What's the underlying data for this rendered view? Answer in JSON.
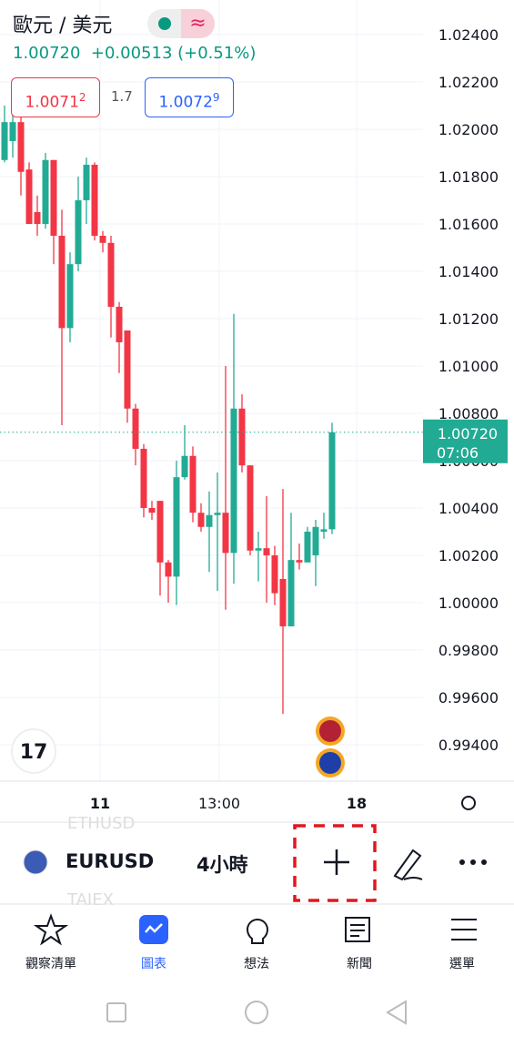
{
  "header": {
    "symbol_name": "歐元 / 美元",
    "price": "1.00720",
    "change": "+0.00513 (+0.51%)",
    "bid": {
      "main": "1.0071",
      "pip": "2"
    },
    "spread": "1.7",
    "ask": {
      "main": "1.0072",
      "pip": "9"
    }
  },
  "chart_data": {
    "type": "candlestick",
    "up_color": "#22ab94",
    "down_color": "#f23645",
    "open": [
      1.0187,
      1.0195,
      1.0203,
      1.0183,
      1.0165,
      1.016,
      1.0187,
      1.0155,
      1.0116,
      1.0143,
      1.017,
      1.0185,
      1.0155,
      1.0152,
      1.0125,
      1.0115,
      1.0082,
      1.0065,
      1.004,
      1.0043,
      1.0017,
      1.0011,
      1.0053,
      1.0062,
      1.0038,
      1.0032,
      1.0037,
      1.0038,
      1.0021,
      1.0082,
      1.0058,
      1.0022,
      1.0023,
      1.002,
      1.001,
      0.999,
      1.0018,
      1.0017,
      1.002,
      1.003,
      1.0031
    ],
    "high": [
      1.021,
      1.0207,
      1.0207,
      1.0186,
      1.0172,
      1.019,
      1.0187,
      1.0166,
      1.0148,
      1.018,
      1.0188,
      1.0186,
      1.0157,
      1.0155,
      1.0127,
      1.0115,
      1.0084,
      1.0067,
      1.0043,
      1.0043,
      1.0018,
      1.006,
      1.0075,
      1.0066,
      1.0042,
      1.0047,
      1.0055,
      1.01,
      1.0122,
      1.0088,
      1.0058,
      1.003,
      1.0045,
      1.0024,
      1.0048,
      1.0038,
      1.0025,
      1.0032,
      1.0035,
      1.0038,
      1.0076
    ],
    "low": [
      1.0186,
      1.0188,
      1.0172,
      1.016,
      1.0155,
      1.0158,
      1.0143,
      1.0075,
      1.011,
      1.014,
      1.016,
      1.0153,
      1.0148,
      1.0112,
      1.0097,
      1.0076,
      1.0058,
      1.0036,
      1.0035,
      1.0003,
      1.0,
      0.9999,
      1.0052,
      1.0034,
      1.003,
      1.0013,
      1.0005,
      0.9997,
      1.0008,
      1.0055,
      1.002,
      1.0009,
      1.0,
      0.9999,
      0.9953,
      0.999,
      1.0014,
      1.002,
      1.0007,
      1.0027,
      1.0029
    ],
    "close": [
      1.0203,
      1.0203,
      1.0182,
      1.016,
      1.016,
      1.0187,
      1.0155,
      1.0116,
      1.0143,
      1.017,
      1.0185,
      1.0155,
      1.0152,
      1.0125,
      1.011,
      1.0082,
      1.0065,
      1.004,
      1.0038,
      1.0017,
      1.0011,
      1.0053,
      1.0062,
      1.0038,
      1.0032,
      1.0037,
      1.0038,
      1.0021,
      1.0082,
      1.0058,
      1.0022,
      1.0023,
      1.002,
      1.0004,
      0.999,
      1.0018,
      1.0017,
      1.003,
      1.0032,
      1.0031,
      1.0072
    ],
    "ylim": [
      0.99246,
      1.02546
    ],
    "yticks": [
      {
        "value": 1.024,
        "label": "1.02400"
      },
      {
        "value": 1.022,
        "label": "1.02200"
      },
      {
        "value": 1.02,
        "label": "1.02000"
      },
      {
        "value": 1.018,
        "label": "1.01800"
      },
      {
        "value": 1.016,
        "label": "1.01600"
      },
      {
        "value": 1.014,
        "label": "1.01400"
      },
      {
        "value": 1.012,
        "label": "1.01200"
      },
      {
        "value": 1.01,
        "label": "1.01000"
      },
      {
        "value": 1.008,
        "label": "1.00800"
      },
      {
        "value": 1.006,
        "label": "1.00600"
      },
      {
        "value": 1.004,
        "label": "1.00400"
      },
      {
        "value": 1.002,
        "label": "1.00200"
      },
      {
        "value": 1.0,
        "label": "1.00000"
      },
      {
        "value": 0.998,
        "label": "0.99800"
      },
      {
        "value": 0.996,
        "label": "0.99600"
      },
      {
        "value": 0.994,
        "label": "0.99400"
      }
    ],
    "grid": true,
    "last_price": {
      "value": 1.0072,
      "label": "1.00720",
      "countdown": "07:06"
    },
    "x_labels": [
      "11",
      "13:00",
      "18"
    ]
  },
  "toolbar": {
    "symbol": "EURUSD",
    "interval": "4小時",
    "prev_symbol": "ETHUSD",
    "next_symbol": "TAIEX"
  },
  "nav": [
    "觀察清單",
    "圖表",
    "想法",
    "新聞",
    "選單"
  ]
}
